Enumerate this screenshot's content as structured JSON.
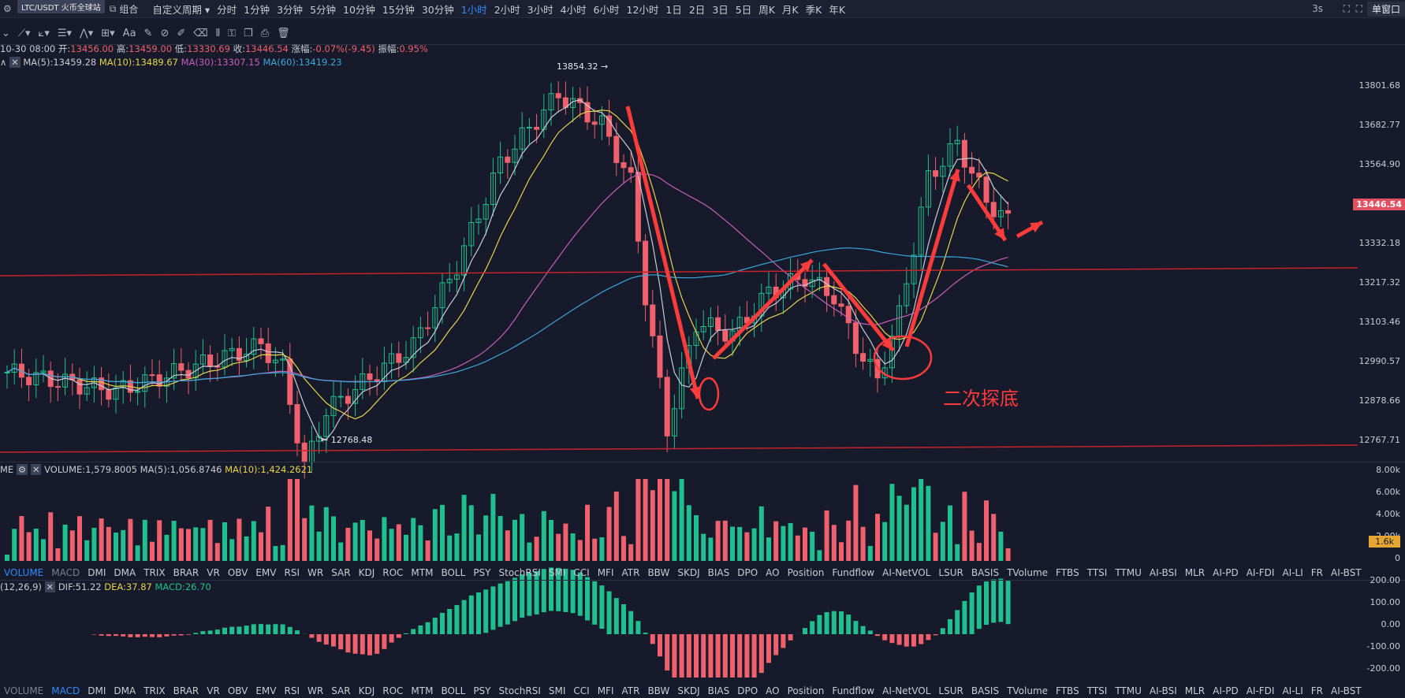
{
  "topbar": {
    "symbol_pill": "LTC/USDT 火币全球站",
    "left_icons": [
      "settings-icon",
      "screenshot-icon",
      "fullscreen-icon"
    ],
    "combo_label": "组合",
    "custom_period": "自定义周期",
    "periods": [
      "分时",
      "1分钟",
      "3分钟",
      "5分钟",
      "10分钟",
      "15分钟",
      "30分钟",
      "1小时",
      "2小时",
      "3小时",
      "4小时",
      "6小时",
      "12小时",
      "1日",
      "2日",
      "3日",
      "5日",
      "周K",
      "月K",
      "季K",
      "年K"
    ],
    "active_period": "1小时",
    "refresh": "3s",
    "window_button": "单窗口"
  },
  "candle_info": {
    "date": "10-30 08:00",
    "open_label": "开:",
    "open": "13456.00",
    "high_label": "高:",
    "high": "13459.00",
    "low_label": "低:",
    "low": "13330.69",
    "close_label": "收:",
    "close": "13446.54",
    "change_label": "涨幅:",
    "change": "-0.07%(-9.45)",
    "amp_label": "振幅:",
    "amp": "0.95%"
  },
  "ma_legend": [
    {
      "text": "MA(5):13459.28",
      "color": "#c9ccd6"
    },
    {
      "text": "MA(10):13489.67",
      "color": "#e6d44a"
    },
    {
      "text": "MA(30):13307.15",
      "color": "#c95fb8"
    },
    {
      "text": "MA(60):13419.23",
      "color": "#3ba7d9"
    }
  ],
  "price_axis": [
    "13801.68",
    "13682.77",
    "13564.90",
    "13446.54",
    "13332.18",
    "13217.32",
    "13103.46",
    "12990.57",
    "12878.66",
    "12767.71"
  ],
  "current_price": "13446.54",
  "annotations": {
    "high_marker": "13854.32",
    "low_marker": "12768.48",
    "note": "二次探底"
  },
  "volume_legend": {
    "prefix": "ME",
    "text1": "VOLUME:1,579.8005",
    "text2": "MA(5):1,056.8746",
    "text3": "MA(10):1,424.2621"
  },
  "volume_axis": [
    "8.00k",
    "6.00k",
    "4.00k",
    "2.00k",
    "0"
  ],
  "volume_tag": "1.6k",
  "macd_legend": {
    "prefix": "(12,26,9)",
    "dif": "DIF:51.22",
    "dea": "DEA:37.87",
    "macd": "MACD:26.70"
  },
  "macd_axis": [
    "200.00",
    "100.00",
    "0.00",
    "-100.00",
    "-200.00"
  ],
  "indicator_tabs": [
    "VOLUME",
    "MACD",
    "DMI",
    "DMA",
    "TRIX",
    "BRAR",
    "VR",
    "OBV",
    "EMV",
    "RSI",
    "WR",
    "SAR",
    "KDJ",
    "ROC",
    "MTM",
    "BOLL",
    "PSY",
    "StochRSI",
    "SMI",
    "CCI",
    "MFI",
    "ATR",
    "BBW",
    "SKDJ",
    "BIAS",
    "DPO",
    "AO",
    "Position",
    "Fundflow",
    "AI-NetVOL",
    "LSUR",
    "BASIS",
    "TVolume",
    "FTBS",
    "TTSI",
    "TTMU",
    "AI-BSI",
    "MLR",
    "AI-PD",
    "AI-FDI",
    "AI-LI",
    "FR",
    "AI-BST"
  ],
  "colors": {
    "up": "#1fbf8f",
    "down": "#f0616d",
    "background": "#161a2a",
    "accent": "#2f8cff",
    "annotation": "#ff3b3b"
  }
}
